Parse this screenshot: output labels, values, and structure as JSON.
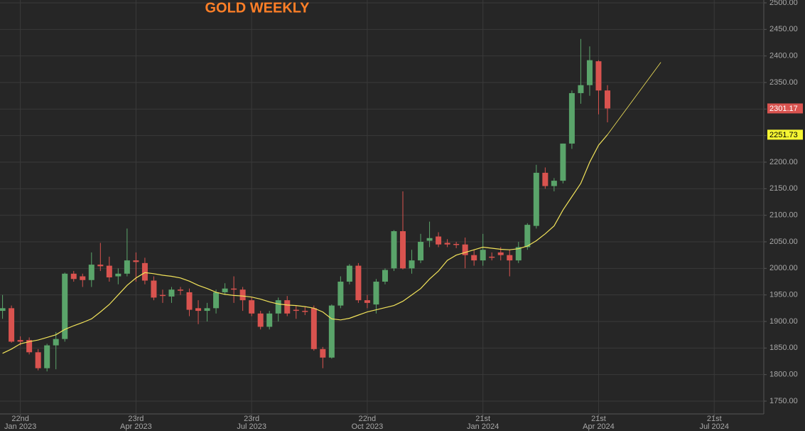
{
  "chart_data": {
    "type": "candlestick",
    "title": "GOLD WEEKLY",
    "x": [
      "2023-01-08",
      "2023-01-15",
      "2023-01-22",
      "2023-01-29",
      "2023-02-05",
      "2023-02-12",
      "2023-02-19",
      "2023-02-26",
      "2023-03-05",
      "2023-03-12",
      "2023-03-19",
      "2023-03-26",
      "2023-04-02",
      "2023-04-09",
      "2023-04-16",
      "2023-04-23",
      "2023-04-30",
      "2023-05-07",
      "2023-05-14",
      "2023-05-21",
      "2023-05-28",
      "2023-06-04",
      "2023-06-11",
      "2023-06-18",
      "2023-06-25",
      "2023-07-02",
      "2023-07-09",
      "2023-07-16",
      "2023-07-23",
      "2023-07-30",
      "2023-08-06",
      "2023-08-13",
      "2023-08-20",
      "2023-08-27",
      "2023-09-03",
      "2023-09-10",
      "2023-09-17",
      "2023-09-24",
      "2023-10-01",
      "2023-10-08",
      "2023-10-15",
      "2023-10-22",
      "2023-10-29",
      "2023-11-05",
      "2023-11-12",
      "2023-11-19",
      "2023-11-26",
      "2023-12-03",
      "2023-12-10",
      "2023-12-17",
      "2023-12-24",
      "2023-12-31",
      "2024-01-07",
      "2024-01-14",
      "2024-01-21",
      "2024-01-28",
      "2024-02-04",
      "2024-02-11",
      "2024-02-18",
      "2024-02-25",
      "2024-03-03",
      "2024-03-10",
      "2024-03-17",
      "2024-03-24",
      "2024-03-31",
      "2024-04-07",
      "2024-04-14",
      "2024-04-21",
      "2024-04-28"
    ],
    "open": [
      1920,
      1925,
      1865,
      1865,
      1842,
      1812,
      1855,
      1867,
      1990,
      1985,
      1978,
      2007,
      2005,
      1985,
      1990,
      2015,
      2010,
      1977,
      1950,
      1947,
      1960,
      1955,
      1925,
      1920,
      1925,
      1955,
      1962,
      1960,
      1940,
      1915,
      1890,
      1915,
      1940,
      1922,
      1920,
      1925,
      1848,
      1832,
      1930,
      1975,
      2005,
      1940,
      1932,
      1975,
      2000,
      2070,
      2000,
      2015,
      2052,
      2060,
      2048,
      2046,
      2045,
      2025,
      2015,
      2022,
      2030,
      2025,
      2015,
      2040,
      2080,
      2180,
      2155,
      2165,
      2235,
      2330,
      2345,
      2390,
      2335
    ],
    "high": [
      1950,
      1930,
      1872,
      1870,
      1848,
      1858,
      1880,
      1992,
      1995,
      1990,
      2030,
      2048,
      2022,
      2000,
      2075,
      2030,
      2020,
      1985,
      1960,
      1965,
      1965,
      1962,
      1940,
      1935,
      1960,
      1972,
      1985,
      1965,
      1945,
      1920,
      1920,
      1945,
      1948,
      1930,
      1928,
      1930,
      1852,
      1932,
      1985,
      2008,
      2010,
      1950,
      1980,
      2000,
      2072,
      2145,
      2035,
      2065,
      2088,
      2068,
      2055,
      2050,
      2058,
      2035,
      2065,
      2030,
      2040,
      2035,
      2050,
      2085,
      2195,
      2190,
      2170,
      2235,
      2335,
      2432,
      2418,
      2392,
      2345
    ],
    "low": [
      1905,
      1860,
      1855,
      1838,
      1808,
      1806,
      1810,
      1862,
      1975,
      1965,
      1965,
      1995,
      1975,
      1970,
      1985,
      1975,
      1970,
      1940,
      1935,
      1935,
      1950,
      1910,
      1895,
      1900,
      1915,
      1950,
      1935,
      1920,
      1910,
      1885,
      1885,
      1900,
      1910,
      1905,
      1912,
      1845,
      1812,
      1830,
      1925,
      1970,
      1935,
      1925,
      1915,
      1970,
      1995,
      1998,
      1990,
      2010,
      2040,
      2040,
      2040,
      2038,
      2000,
      2005,
      2005,
      2015,
      2015,
      1985,
      2010,
      2035,
      2075,
      2150,
      2145,
      2160,
      2225,
      2310,
      2325,
      2290,
      2275
    ],
    "close": [
      1925,
      1862,
      1862,
      1842,
      1812,
      1855,
      1867,
      1990,
      1980,
      1978,
      2007,
      2004,
      1983,
      1990,
      2015,
      2012,
      1977,
      1945,
      1948,
      1960,
      1958,
      1922,
      1920,
      1925,
      1955,
      1962,
      1960,
      1940,
      1915,
      1890,
      1915,
      1940,
      1915,
      1920,
      1918,
      1848,
      1832,
      1930,
      1975,
      2005,
      1940,
      1935,
      1975,
      1997,
      2070,
      2000,
      2015,
      2050,
      2057,
      2045,
      2045,
      2044,
      2025,
      2015,
      2035,
      2020,
      2025,
      2015,
      2040,
      2082,
      2180,
      2155,
      2165,
      2235,
      2330,
      2345,
      2392,
      2335,
      2301.17
    ],
    "up_color": "#5aa46a",
    "down_color": "#d9534f",
    "ma": {
      "color": "#f2e35a",
      "values": [
        1840,
        1848,
        1858,
        1862,
        1865,
        1870,
        1875,
        1885,
        1892,
        1898,
        1905,
        1918,
        1932,
        1950,
        1968,
        1982,
        1992,
        1990,
        1987,
        1985,
        1982,
        1976,
        1968,
        1962,
        1955,
        1951,
        1949,
        1948,
        1946,
        1942,
        1937,
        1933,
        1931,
        1930,
        1928,
        1925,
        1918,
        1905,
        1903,
        1906,
        1912,
        1918,
        1922,
        1926,
        1930,
        1938,
        1950,
        1962,
        1980,
        1995,
        2015,
        2025,
        2030,
        2035,
        2040,
        2038,
        2036,
        2035,
        2037,
        2042,
        2052,
        2065,
        2080,
        2110,
        2135,
        2160,
        2200,
        2232,
        2251.73
      ]
    },
    "projection": {
      "x": [
        "2024-04-28",
        "2024-06-09"
      ],
      "values": [
        2251.73,
        2388
      ]
    },
    "xlim": [
      "2023-01-06",
      "2024-08-29"
    ],
    "xticks": [
      {
        "value": "2023-01-22",
        "label": "22nd\nJan 2023"
      },
      {
        "value": "2023-04-23",
        "label": "23rd\nApr 2023"
      },
      {
        "value": "2023-07-23",
        "label": "23rd\nJul 2023"
      },
      {
        "value": "2023-10-22",
        "label": "22nd\nOct 2023"
      },
      {
        "value": "2024-01-21",
        "label": "21st\nJan 2024"
      },
      {
        "value": "2024-04-21",
        "label": "21st\nApr 2024"
      },
      {
        "value": "2024-07-21",
        "label": "21st\nJul 2024"
      }
    ],
    "ylim": [
      1750,
      2500
    ],
    "yticks": [
      {
        "value": 1750,
        "label": "1750.00"
      },
      {
        "value": 1800,
        "label": "1800.00"
      },
      {
        "value": 1850,
        "label": "1850.00"
      },
      {
        "value": 1900,
        "label": "1900.00"
      },
      {
        "value": 1950,
        "label": "1950.00"
      },
      {
        "value": 2000,
        "label": "2000.00"
      },
      {
        "value": 2050,
        "label": "2050.00"
      },
      {
        "value": 2100,
        "label": "2100.00"
      },
      {
        "value": 2150,
        "label": "2150.00"
      },
      {
        "value": 2200,
        "label": "2200.00"
      },
      {
        "value": 2250,
        "label": "2250.00"
      },
      {
        "value": 2300,
        "label": "2300.00"
      },
      {
        "value": 2350,
        "label": "2350.00"
      },
      {
        "value": 2400,
        "label": "2400.00"
      },
      {
        "value": 2450,
        "label": "2450.00"
      },
      {
        "value": 2500,
        "label": "2500.00"
      }
    ],
    "grid": true
  }
}
